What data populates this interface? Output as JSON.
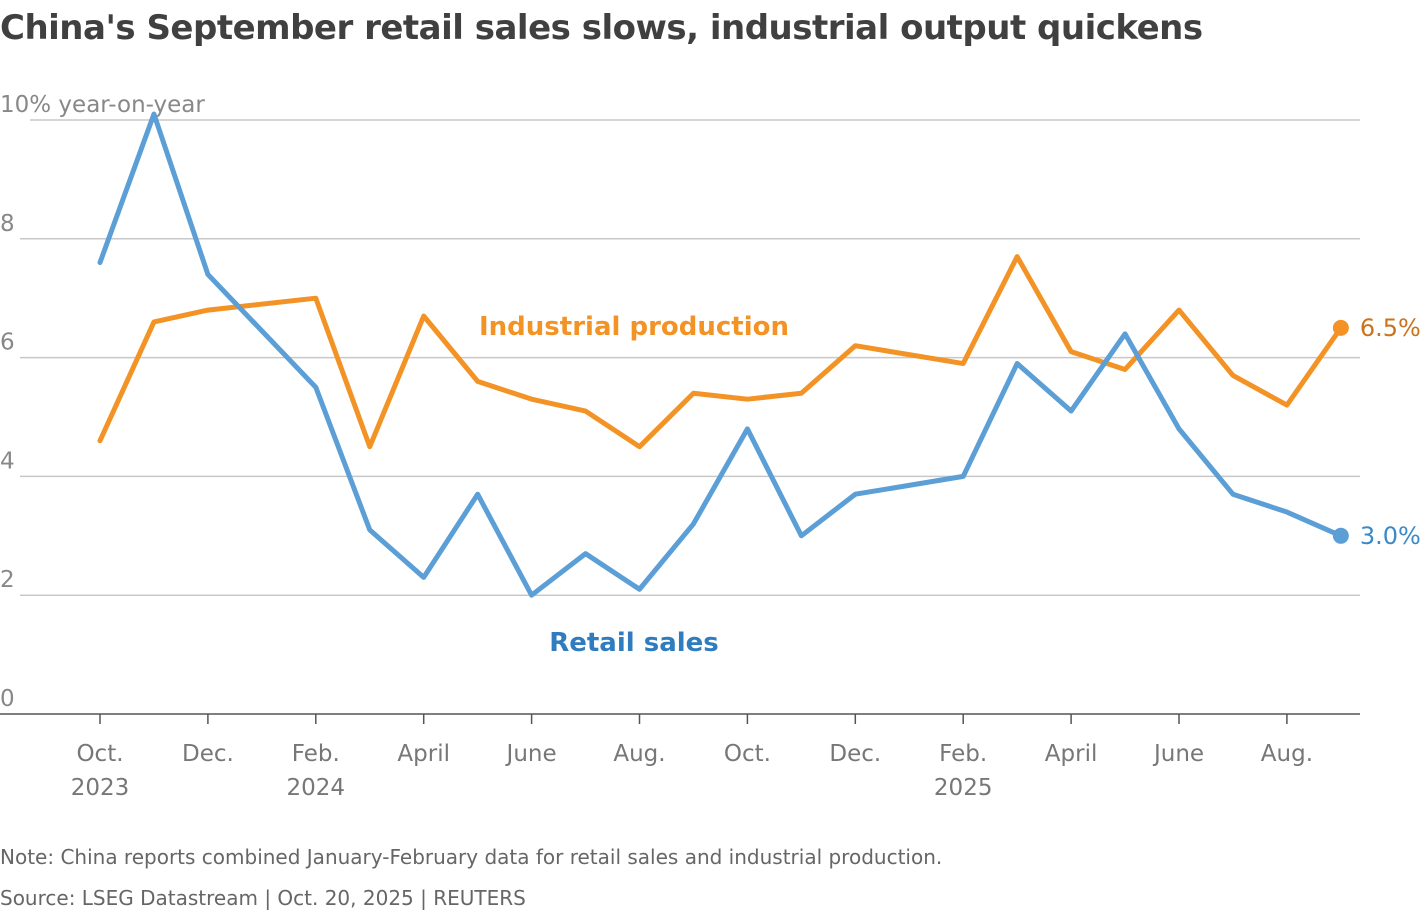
{
  "title": "China's September retail sales slows, industrial output quickens",
  "note": "Note: China reports combined January-February data for retail sales and industrial production.",
  "source": "Source: LSEG Datastream | Oct. 20, 2025 | REUTERS",
  "chart_data": {
    "type": "line",
    "title": "China's September retail sales slows, industrial output quickens",
    "ylabel": "10% year-on-year",
    "ylim": [
      0,
      10
    ],
    "yticks": [
      "0",
      "2",
      "4",
      "6",
      "8",
      "10% year-on-year"
    ],
    "grid": true,
    "xticks": [
      {
        "x": "2023-10",
        "label": "Oct.",
        "year": "2023"
      },
      {
        "x": "2023-12",
        "label": "Dec."
      },
      {
        "x": "2024-02",
        "label": "Feb.",
        "year": "2024"
      },
      {
        "x": "2024-04",
        "label": "April"
      },
      {
        "x": "2024-06",
        "label": "June"
      },
      {
        "x": "2024-08",
        "label": "Aug."
      },
      {
        "x": "2024-10",
        "label": "Oct."
      },
      {
        "x": "2024-12",
        "label": "Dec."
      },
      {
        "x": "2025-02",
        "label": "Feb.",
        "year": "2025"
      },
      {
        "x": "2025-04",
        "label": "April"
      },
      {
        "x": "2025-06",
        "label": "June"
      },
      {
        "x": "2025-08",
        "label": "Aug."
      }
    ],
    "x": [
      "2023-10",
      "2023-11",
      "2023-12",
      "2024-02",
      "2024-03",
      "2024-04",
      "2024-05",
      "2024-06",
      "2024-07",
      "2024-08",
      "2024-09",
      "2024-10",
      "2024-11",
      "2024-12",
      "2025-02",
      "2025-03",
      "2025-04",
      "2025-05",
      "2025-06",
      "2025-07",
      "2025-08",
      "2025-09"
    ],
    "series": [
      {
        "name": "Industrial production",
        "color": "#f39325",
        "label_color": "#f39325",
        "end_label": "6.5%",
        "end_color": "#c8741c",
        "values": [
          4.6,
          6.6,
          6.8,
          7.0,
          4.5,
          6.7,
          5.6,
          5.3,
          5.1,
          4.5,
          5.4,
          5.3,
          5.4,
          6.2,
          5.9,
          7.7,
          6.1,
          5.8,
          6.8,
          5.7,
          5.2,
          6.5
        ]
      },
      {
        "name": "Retail sales",
        "color": "#5b9fd6",
        "label_color": "#2f7dbf",
        "end_label": "3.0%",
        "end_color": "#3a8ac9",
        "values": [
          7.6,
          10.1,
          7.4,
          5.5,
          3.1,
          2.3,
          3.7,
          2.0,
          2.7,
          2.1,
          3.2,
          4.8,
          3.0,
          3.7,
          4.0,
          5.9,
          5.1,
          6.4,
          4.8,
          3.7,
          3.4,
          3.0
        ]
      }
    ]
  }
}
